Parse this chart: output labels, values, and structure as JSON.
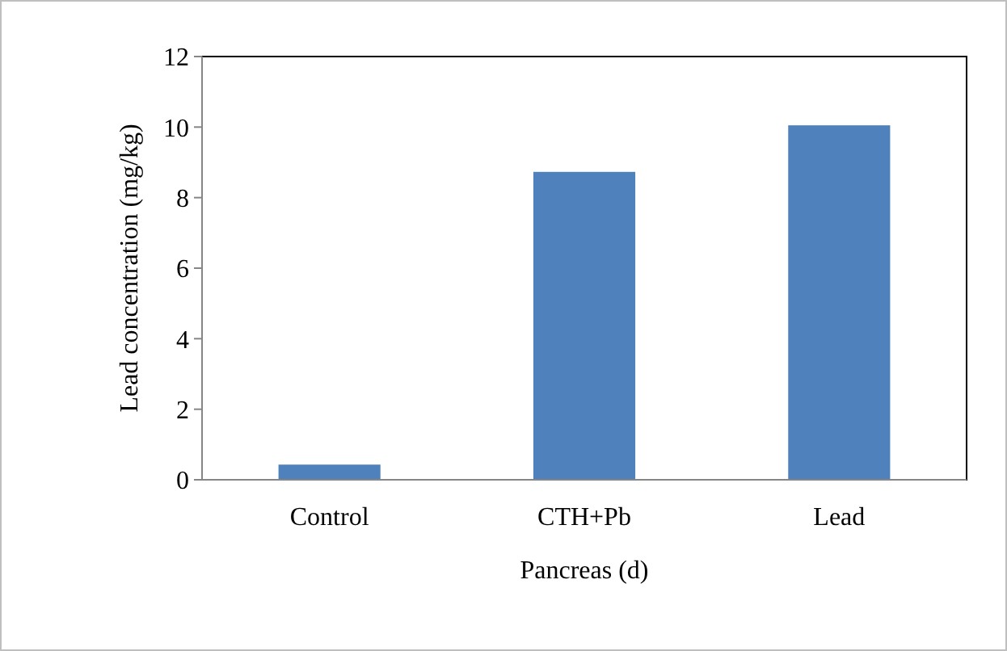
{
  "chart_data": {
    "type": "bar",
    "xlabel": "Pancreas (d)",
    "ylabel": "Lead concentration (mg/kg)",
    "categories": [
      "Control",
      "CTH+Pb",
      "Lead"
    ],
    "values": [
      0.43,
      8.73,
      10.05
    ],
    "color": "#4f81bd",
    "ylim": [
      0,
      12
    ],
    "yticks": [
      0,
      2,
      4,
      6,
      8,
      10,
      12
    ],
    "grid": false
  }
}
